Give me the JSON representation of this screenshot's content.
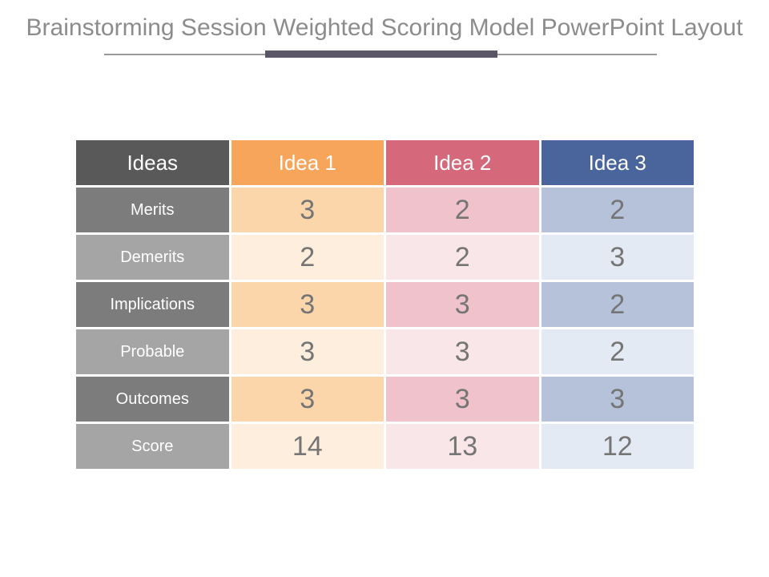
{
  "title": "Brainstorming Session Weighted Scoring Model PowerPoint Layout",
  "table": {
    "header": [
      "Ideas",
      "Idea 1",
      "Idea 2",
      "Idea 3"
    ],
    "rows": [
      {
        "label": "Merits",
        "values": [
          "3",
          "2",
          "2"
        ]
      },
      {
        "label": "Demerits",
        "values": [
          "2",
          "2",
          "3"
        ]
      },
      {
        "label": "Implications",
        "values": [
          "3",
          "3",
          "2"
        ]
      },
      {
        "label": "Probable",
        "values": [
          "3",
          "3",
          "2"
        ]
      },
      {
        "label": "Outcomes",
        "values": [
          "3",
          "3",
          "3"
        ]
      },
      {
        "label": "Score",
        "values": [
          "14",
          "13",
          "12"
        ]
      }
    ]
  },
  "colors": {
    "title_text": "#8c8c8c",
    "divider_thin": "#9a9a9a",
    "divider_accent": "#5c5768",
    "header_ideas": "#595959",
    "header_idea1": "#f8a55c",
    "header_idea2": "#d5697b",
    "header_idea3": "#4a659b",
    "label_dark": "#7c7c7c",
    "label_light": "#a5a5a5",
    "idea1_tint_mid": "#fbd6ab",
    "idea1_tint_pale": "#fdeedd",
    "idea2_tint_mid": "#efc2cc",
    "idea2_tint_pale": "#f9e6e9",
    "idea3_tint_mid": "#b6c2d9",
    "idea3_tint_pale": "#e4eaf3",
    "number_text": "#757575"
  },
  "chart_data": {
    "type": "table",
    "title": "Brainstorming Session Weighted Scoring Model PowerPoint Layout",
    "columns": [
      "Ideas",
      "Idea 1",
      "Idea 2",
      "Idea 3"
    ],
    "rows": [
      [
        "Merits",
        3,
        2,
        2
      ],
      [
        "Demerits",
        2,
        2,
        3
      ],
      [
        "Implications",
        3,
        3,
        2
      ],
      [
        "Probable",
        3,
        3,
        2
      ],
      [
        "Outcomes",
        3,
        3,
        3
      ],
      [
        "Score",
        14,
        13,
        12
      ]
    ]
  }
}
